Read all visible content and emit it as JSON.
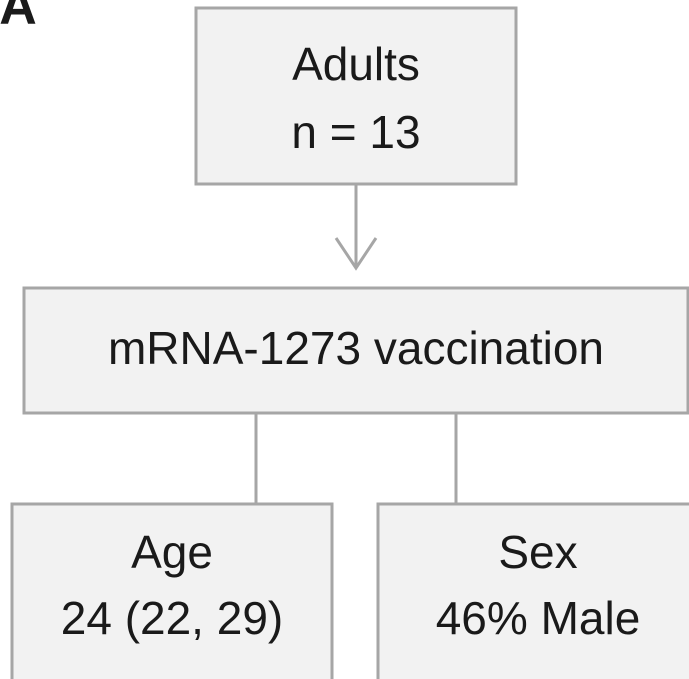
{
  "panel_label": "A",
  "nodes": [
    {
      "lines": [
        "Adults",
        "n = 13"
      ]
    },
    {
      "lines": [
        "mRNA-1273 vaccination"
      ]
    },
    {
      "lines": [
        "Age",
        "24 (22, 29)"
      ]
    },
    {
      "lines": [
        "Sex",
        "46% Male"
      ]
    }
  ]
}
